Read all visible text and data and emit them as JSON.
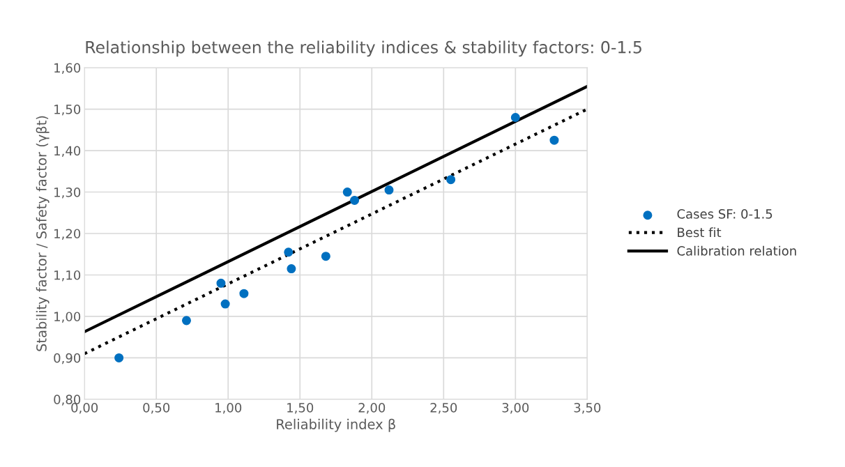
{
  "chart_data": {
    "type": "scatter",
    "title": "Relationship between the reliability indices & stability factors: 0-1.5",
    "xlabel": "Reliability index β",
    "ylabel": "Stability factor / Safety factor (γβt)",
    "xlim": [
      0,
      3.5
    ],
    "xticks": [
      {
        "value": 0,
        "label": "0,00"
      },
      {
        "value": 0.5,
        "label": "0,50"
      },
      {
        "value": 1,
        "label": "1,00"
      },
      {
        "value": 1.5,
        "label": "1,50"
      },
      {
        "value": 2,
        "label": "2,00"
      },
      {
        "value": 2.5,
        "label": "2,50"
      },
      {
        "value": 3,
        "label": "3,00"
      },
      {
        "value": 3.5,
        "label": "3,50"
      }
    ],
    "ylim": [
      0.8,
      1.6
    ],
    "yticks": [
      {
        "value": 0.8,
        "label": "0,80"
      },
      {
        "value": 0.9,
        "label": "0,90"
      },
      {
        "value": 1.0,
        "label": "1,00"
      },
      {
        "value": 1.1,
        "label": "1,10"
      },
      {
        "value": 1.2,
        "label": "1,20"
      },
      {
        "value": 1.3,
        "label": "1,30"
      },
      {
        "value": 1.4,
        "label": "1,40"
      },
      {
        "value": 1.5,
        "label": "1,50"
      },
      {
        "value": 1.6,
        "label": "1,60"
      }
    ],
    "grid": true,
    "legend": "right",
    "series": [
      {
        "name": "Cases SF: 0-1.5",
        "color": "#0070c0",
        "marker": "circle",
        "x": [
          0.24,
          0.71,
          0.95,
          0.98,
          1.11,
          1.42,
          1.44,
          1.68,
          1.83,
          1.88,
          2.12,
          2.55,
          3.0,
          3.27
        ],
        "values": [
          0.9,
          0.99,
          1.08,
          1.03,
          1.055,
          1.155,
          1.115,
          1.145,
          1.3,
          1.28,
          1.305,
          1.33,
          1.48,
          1.425
        ]
      },
      {
        "name": "Best fit",
        "type": "line",
        "color": "#000000",
        "line_style": "dotted",
        "marker": "none",
        "x": [
          0,
          3.5
        ],
        "values": [
          0.91,
          1.5
        ]
      },
      {
        "name": "Calibration relation",
        "type": "line",
        "color": "#000000",
        "line_style": "solid",
        "marker": "none",
        "x": [
          0,
          3.5
        ],
        "values": [
          0.963,
          1.555
        ]
      }
    ]
  }
}
